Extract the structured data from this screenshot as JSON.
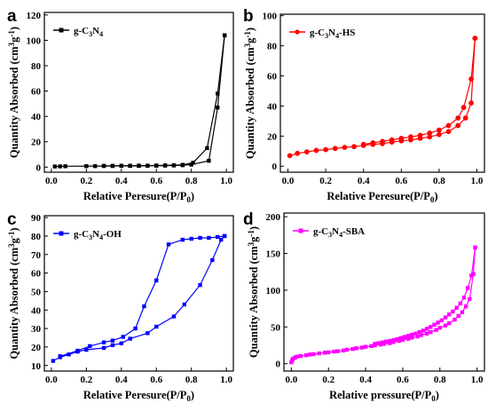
{
  "chart_data": [
    {
      "type": "line",
      "panel_label": "a",
      "xlabel": "Relative Peresure(P/P",
      "xlabel_sub": "0",
      "xlabel_end": ")",
      "ylabel": "Quantity Absorbed (cm",
      "ylabel_sup1": "3",
      "ylabel_mid": "g",
      "ylabel_sup2": "-1",
      "ylabel_end": ")",
      "xlim": [
        -0.04,
        1.04
      ],
      "ylim": [
        -4,
        122
      ],
      "xticks": [
        0.0,
        0.2,
        0.4,
        0.6,
        0.8,
        1.0
      ],
      "xtick_labels": [
        "0.0",
        "0.2",
        "0.4",
        "0.6",
        "0.8",
        "1.0"
      ],
      "yticks": [
        0,
        20,
        40,
        60,
        80,
        100,
        120
      ],
      "ytick_labels": [
        "0",
        "20",
        "40",
        "60",
        "80",
        "100",
        "120"
      ],
      "legend": {
        "base": "g-C",
        "sub1": "3",
        "mid": "N",
        "sub2": "4",
        "rest": "",
        "placement": "top-left"
      },
      "color": "#000000",
      "marker": "square",
      "series": [
        {
          "x": [
            0.02,
            0.05,
            0.08,
            0.2,
            0.25,
            0.3,
            0.35,
            0.4,
            0.45,
            0.5,
            0.55,
            0.6,
            0.65,
            0.7,
            0.75,
            0.8,
            0.9,
            0.95,
            0.99
          ],
          "values": [
            0.5,
            0.6,
            0.7,
            0.8,
            0.8,
            0.9,
            0.9,
            1.0,
            1.0,
            1.0,
            1.1,
            1.1,
            1.2,
            1.3,
            1.5,
            2.0,
            5.0,
            47,
            104
          ]
        },
        {
          "x": [
            0.99,
            0.95,
            0.89,
            0.81,
            0.75,
            0.7,
            0.65,
            0.6,
            0.55,
            0.5,
            0.45,
            0.4,
            0.35,
            0.3
          ],
          "values": [
            104,
            58,
            15,
            3.5,
            1.8,
            1.5,
            1.4,
            1.3,
            1.2,
            1.2,
            1.1,
            1.1,
            1.0,
            1.0
          ]
        }
      ]
    },
    {
      "type": "line",
      "panel_label": "b",
      "xlabel": "Relative Peresure(P/P",
      "xlabel_sub": "0",
      "xlabel_end": ")",
      "ylabel": "Quantity Absorbed (cm",
      "ylabel_sup1": "3",
      "ylabel_mid": "g",
      "ylabel_sup2": "-1",
      "ylabel_end": ")",
      "xlim": [
        -0.04,
        1.04
      ],
      "ylim": [
        -4,
        101
      ],
      "xticks": [
        0.0,
        0.2,
        0.4,
        0.6,
        0.8,
        1.0
      ],
      "xtick_labels": [
        "0.0",
        "0.2",
        "0.4",
        "0.6",
        "0.8",
        "1.0"
      ],
      "yticks": [
        0,
        20,
        40,
        60,
        80,
        100
      ],
      "ytick_labels": [
        "0",
        "20",
        "40",
        "60",
        "80",
        "100"
      ],
      "legend": {
        "base": "g-C",
        "sub1": "3",
        "mid": "N",
        "sub2": "4",
        "rest": "-HS",
        "placement": "top-left"
      },
      "color": "#ff0000",
      "marker": "circle",
      "series": [
        {
          "x": [
            0.01,
            0.05,
            0.1,
            0.15,
            0.2,
            0.25,
            0.3,
            0.35,
            0.4,
            0.45,
            0.5,
            0.55,
            0.6,
            0.65,
            0.7,
            0.75,
            0.8,
            0.85,
            0.9,
            0.94,
            0.97,
            0.99
          ],
          "values": [
            7,
            8.5,
            9.5,
            10.5,
            11,
            11.8,
            12.5,
            13,
            13.8,
            14.5,
            15,
            16,
            16.8,
            17.5,
            18.5,
            19.5,
            21,
            23,
            27,
            32,
            42,
            85
          ]
        },
        {
          "x": [
            0.99,
            0.97,
            0.93,
            0.9,
            0.85,
            0.8,
            0.75,
            0.7,
            0.65,
            0.6,
            0.55,
            0.5,
            0.45,
            0.4
          ],
          "values": [
            85,
            58,
            39,
            32,
            27,
            24,
            22,
            20.5,
            19.5,
            18.5,
            17.5,
            16.5,
            15.5,
            14.5
          ]
        }
      ]
    },
    {
      "type": "line",
      "panel_label": "c",
      "xlabel": "Relative Peresure(P/P",
      "xlabel_sub": "0",
      "xlabel_end": ")",
      "ylabel": "Quantity Absorbed (cm",
      "ylabel_sup1": "3",
      "ylabel_mid": "g",
      "ylabel_sup2": "-1",
      "ylabel_end": ")",
      "xlim": [
        -0.04,
        1.04
      ],
      "ylim": [
        7,
        91
      ],
      "xticks": [
        0.0,
        0.2,
        0.4,
        0.6,
        0.8,
        1.0
      ],
      "xtick_labels": [
        "0.0",
        "0.2",
        "0.4",
        "0.6",
        "0.8",
        "1.0"
      ],
      "yticks": [
        10,
        20,
        30,
        40,
        50,
        60,
        70,
        80,
        90
      ],
      "ytick_labels": [
        "10",
        "20",
        "30",
        "40",
        "50",
        "60",
        "70",
        "80",
        "90"
      ],
      "legend": {
        "base": "g-C",
        "sub1": "3",
        "mid": "N",
        "sub2": "4",
        "rest": "-OH",
        "placement": "top-left"
      },
      "color": "#0000ff",
      "marker": "square",
      "series": [
        {
          "x": [
            0.01,
            0.05,
            0.1,
            0.15,
            0.2,
            0.3,
            0.35,
            0.4,
            0.45,
            0.55,
            0.6,
            0.7,
            0.76,
            0.85,
            0.92,
            0.97,
            0.99
          ],
          "values": [
            12.5,
            14.5,
            16,
            17.5,
            18.5,
            19.5,
            21,
            22,
            24.5,
            27.5,
            31,
            36.5,
            43,
            53.5,
            67,
            78,
            80
          ]
        },
        {
          "x": [
            0.99,
            0.95,
            0.9,
            0.85,
            0.8,
            0.75,
            0.67,
            0.6,
            0.53,
            0.48,
            0.41,
            0.35,
            0.3,
            0.22,
            0.15,
            0.05
          ],
          "values": [
            80,
            79.5,
            79,
            79,
            78.5,
            78,
            75.5,
            56,
            42,
            30,
            25.5,
            23.5,
            22.5,
            20.5,
            18,
            15
          ]
        }
      ]
    },
    {
      "type": "line",
      "panel_label": "d",
      "xlabel": "Relative pressure(P/P",
      "xlabel_sub": "0",
      "xlabel_end": ")",
      "ylabel": "Quantity Absorbed (cm",
      "ylabel_sup1": "3",
      "ylabel_mid": "g",
      "ylabel_sup2": "-1",
      "ylabel_end": ")",
      "xlim": [
        -0.04,
        1.04
      ],
      "ylim": [
        -10,
        205
      ],
      "xticks": [
        0.0,
        0.2,
        0.4,
        0.6,
        0.8,
        1.0
      ],
      "xtick_labels": [
        "0.0",
        "0.2",
        "0.4",
        "0.6",
        "0.8",
        "1.0"
      ],
      "yticks": [
        0,
        50,
        100,
        150,
        200
      ],
      "ytick_labels": [
        "0",
        "50",
        "100",
        "150",
        "200"
      ],
      "legend": {
        "base": "g-C",
        "sub1": "3",
        "mid": "N",
        "sub2": "4",
        "rest": "-SBA",
        "placement": "top-left"
      },
      "color": "#ff00ff",
      "marker": "square",
      "series": [
        {
          "x": [
            0.0,
            0.005,
            0.01,
            0.02,
            0.03,
            0.05,
            0.08,
            0.1,
            0.12,
            0.15,
            0.18,
            0.2,
            0.23,
            0.25,
            0.28,
            0.3,
            0.33,
            0.35,
            0.38,
            0.4,
            0.43,
            0.45,
            0.48,
            0.5,
            0.53,
            0.55,
            0.58,
            0.6,
            0.63,
            0.65,
            0.68,
            0.7,
            0.73,
            0.75,
            0.78,
            0.8,
            0.83,
            0.85,
            0.88,
            0.9,
            0.92,
            0.94,
            0.96,
            0.98,
            0.99
          ],
          "values": [
            2,
            5,
            7,
            8.5,
            9.5,
            10.5,
            11.5,
            12.5,
            13,
            14,
            15,
            15.5,
            16.5,
            17,
            18,
            19,
            20,
            21,
            22,
            23,
            24,
            25,
            26,
            27,
            28,
            29.5,
            31,
            32.5,
            34,
            35.5,
            37,
            39,
            41,
            43,
            46,
            49,
            52,
            55,
            60,
            65,
            70,
            78,
            88,
            122,
            158
          ]
        },
        {
          "x": [
            0.99,
            0.97,
            0.95,
            0.93,
            0.91,
            0.89,
            0.87,
            0.85,
            0.83,
            0.81,
            0.79,
            0.77,
            0.75,
            0.73,
            0.71,
            0.69,
            0.67,
            0.65,
            0.63,
            0.61,
            0.59,
            0.57,
            0.55,
            0.53,
            0.51,
            0.49,
            0.47,
            0.45
          ],
          "values": [
            158,
            120,
            103,
            90,
            82,
            76,
            71,
            67,
            63,
            59,
            56,
            53,
            50,
            47.5,
            45,
            43,
            41,
            39.5,
            38,
            36.5,
            35,
            33.5,
            32,
            31,
            30,
            29,
            28,
            27
          ]
        }
      ]
    }
  ]
}
